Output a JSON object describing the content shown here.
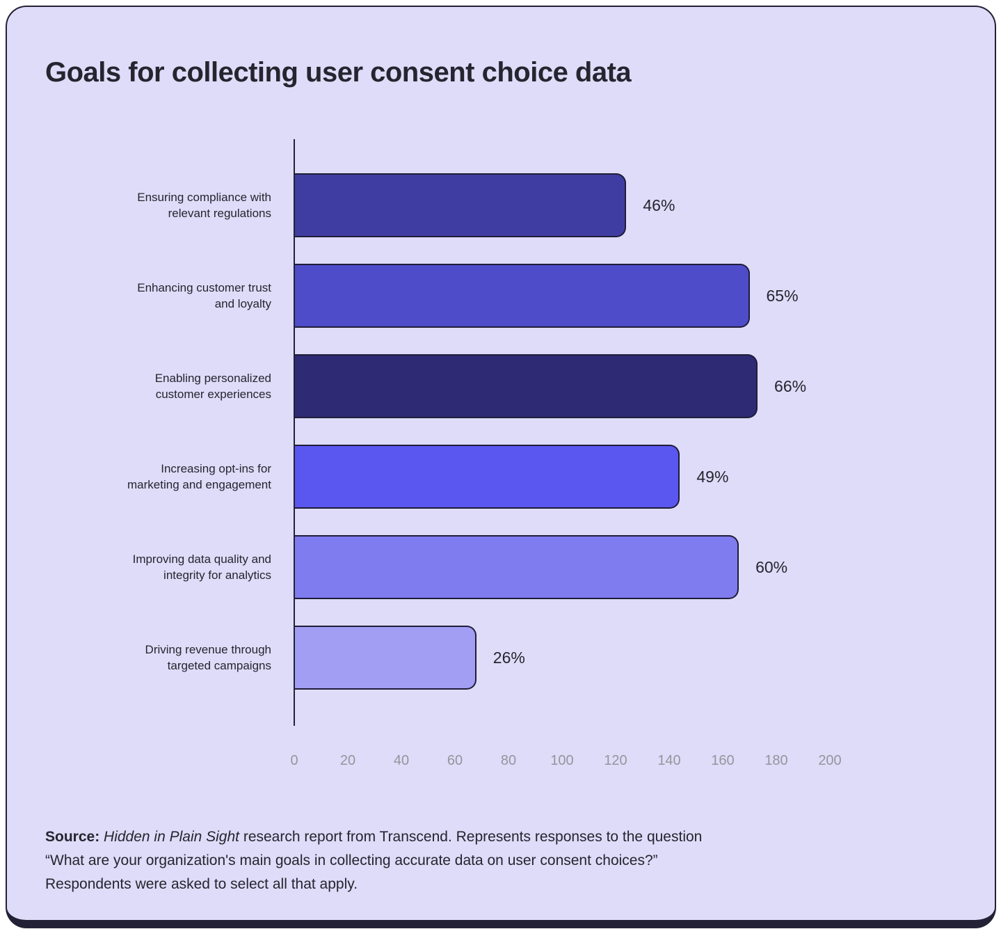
{
  "title": "Goals for collecting user consent choice data",
  "chart_data": {
    "type": "bar",
    "orientation": "horizontal",
    "title": "Goals for collecting user consent choice data",
    "categories": [
      "Ensuring compliance with relevant regulations",
      "Enhancing customer trust and loyalty",
      "Enabling personalized customer experiences",
      "Increasing opt-ins for marketing and engagement",
      "Improving data quality and integrity for analytics",
      "Driving revenue through targeted campaigns"
    ],
    "values_percent": [
      46,
      65,
      66,
      49,
      60,
      26
    ],
    "value_labels": [
      "46%",
      "65%",
      "66%",
      "49%",
      "60%",
      "26%"
    ],
    "bar_length_axis_units": [
      124,
      170,
      173,
      144,
      166,
      68
    ],
    "xlim": [
      0,
      200
    ],
    "x_ticks": [
      "0",
      "20",
      "40",
      "60",
      "80",
      "100",
      "120",
      "140",
      "160",
      "180",
      "200"
    ],
    "xlabel": "",
    "ylabel": "",
    "legend": "none",
    "grid": "off",
    "bar_colors": [
      "#403da2",
      "#4f4cc9",
      "#2e2a74",
      "#5a57f0",
      "#7f7cf0",
      "#a19ef4"
    ],
    "rows": [
      {
        "label_lines": [
          "Ensuring compliance with",
          "relevant regulations"
        ],
        "value_label": "46%",
        "percent": 46,
        "length_units": 124,
        "color": "#403da2"
      },
      {
        "label_lines": [
          "Enhancing customer trust",
          "and loyalty"
        ],
        "value_label": "65%",
        "percent": 65,
        "length_units": 170,
        "color": "#4f4cc9"
      },
      {
        "label_lines": [
          "Enabling personalized",
          "customer experiences"
        ],
        "value_label": "66%",
        "percent": 66,
        "length_units": 173,
        "color": "#2e2a74"
      },
      {
        "label_lines": [
          "Increasing opt-ins for",
          "marketing and engagement"
        ],
        "value_label": "49%",
        "percent": 49,
        "length_units": 144,
        "color": "#5a57f0"
      },
      {
        "label_lines": [
          "Improving data quality and",
          "integrity for analytics"
        ],
        "value_label": "60%",
        "percent": 60,
        "length_units": 166,
        "color": "#7f7cf0"
      },
      {
        "label_lines": [
          "Driving revenue through",
          "targeted campaigns"
        ],
        "value_label": "26%",
        "percent": 26,
        "length_units": 68,
        "color": "#a19ef4"
      }
    ]
  },
  "source": {
    "prefix_bold": "Source:",
    "report_name_italic": "Hidden in Plain Sight",
    "line1_rest": " research report from Transcend. Represents responses to the question",
    "line2": "“What are your organization's main goals in collecting accurate data on user consent choices?”",
    "line3": "Respondents were asked to select all that apply."
  },
  "colors": {
    "card_background": "#dedcf8",
    "page_background": "#ffffff",
    "ink": "#232135",
    "tick_text": "#97949e"
  }
}
